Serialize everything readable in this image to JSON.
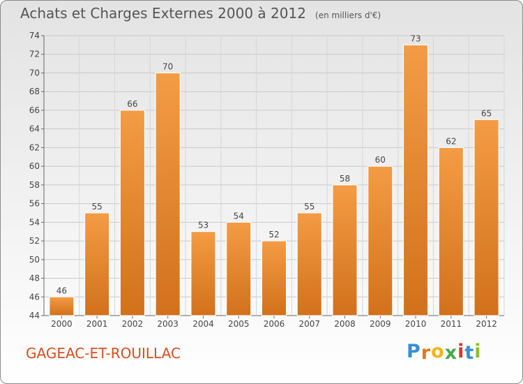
{
  "chart_data": {
    "type": "bar",
    "title": "Achats et Charges Externes 2000 à 2012",
    "subtitle": "(en milliers d'€)",
    "categories": [
      "2000",
      "2001",
      "2002",
      "2003",
      "2004",
      "2005",
      "2006",
      "2007",
      "2008",
      "2009",
      "2010",
      "2011",
      "2012"
    ],
    "values": [
      46,
      55,
      66,
      70,
      53,
      54,
      52,
      55,
      58,
      60,
      73,
      62,
      65
    ],
    "ylim": [
      44,
      74
    ],
    "yticks": [
      44,
      46,
      48,
      50,
      52,
      54,
      56,
      58,
      60,
      62,
      64,
      66,
      68,
      70,
      72,
      74
    ],
    "grid": true,
    "data_labels": true,
    "bar_color": "#f39c45",
    "bar_color_dark": "#d2711b"
  },
  "commune": "GAGEAC-ET-ROUILLAC",
  "brand": {
    "letters": [
      "P",
      "r",
      "o",
      "x",
      "i",
      "t",
      "i"
    ],
    "colors": [
      "#3a8fd4",
      "#e8741e",
      "#f0b41c",
      "#4aa84a",
      "#d9342b",
      "#3a8fd4",
      "#8bbf2e"
    ]
  }
}
